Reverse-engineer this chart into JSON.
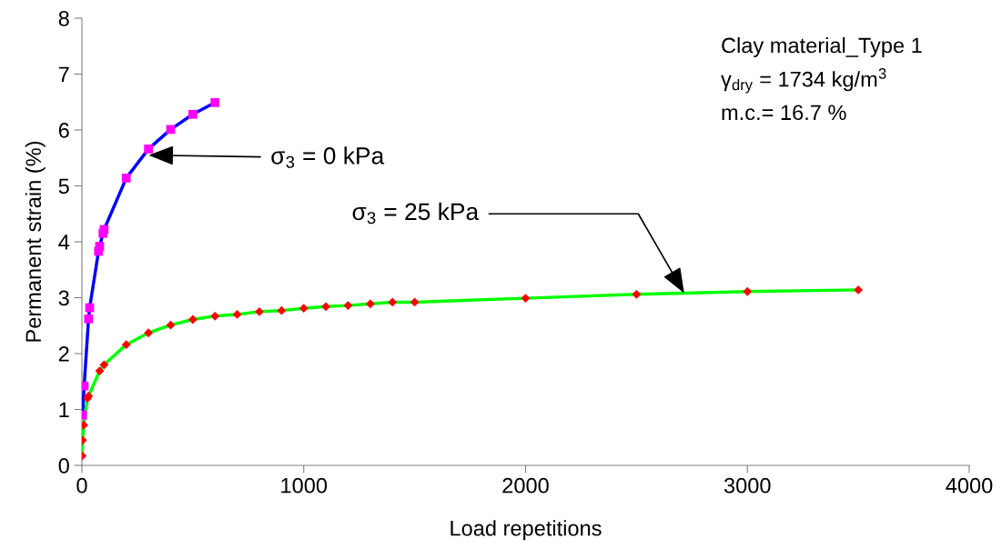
{
  "chart_data": {
    "type": "line",
    "xlabel": "Load repetitions",
    "ylabel": "Permanent strain (%)",
    "xlim": [
      0,
      4000
    ],
    "xticks": [
      0,
      1000,
      2000,
      3000,
      4000
    ],
    "ylim": [
      0,
      8
    ],
    "yticks": [
      0,
      1,
      2,
      3,
      4,
      5,
      6,
      7,
      8
    ],
    "grid": false,
    "legend": false,
    "series": [
      {
        "color": "#0000ff",
        "marker": "square",
        "colors": [
          "#ff00ff",
          "#ff00ff",
          "#ff00ff",
          "#ff00ff",
          "#ff00ff",
          "#ff00ff",
          "#ff00ff",
          "#ff00ff",
          "#ff00ff",
          "#ff00ff",
          "#ff00ff",
          "#ff00ff",
          "#ff00ff"
        ],
        "x": [
          3,
          10,
          30,
          35,
          75,
          80,
          95,
          100,
          200,
          300,
          400,
          500,
          600
        ],
        "values": [
          0.9,
          1.42,
          2.62,
          2.82,
          3.83,
          3.92,
          4.15,
          4.22,
          5.14,
          5.66,
          6.01,
          6.28,
          6.49
        ]
      },
      {
        "color": "#00ff00",
        "marker": "diamond",
        "colors": [
          "#ff0000",
          "#ff0000",
          "#ff0000",
          "#ff0000",
          "#ff0000",
          "#ff0000",
          "#ff0000",
          "#ff0000",
          "#ff0000",
          "#ff0000",
          "#ff0000",
          "#ff0000",
          "#ff0000",
          "#ff0000",
          "#ff0000",
          "#ff0000",
          "#ff0000",
          "#ff0000",
          "#ff0000",
          "#ff0000",
          "#ff0000",
          "#ff0000",
          "#ff0000",
          "#ff0000",
          "#ff0000"
        ],
        "x": [
          1,
          3,
          8,
          25,
          30,
          80,
          100,
          200,
          300,
          400,
          500,
          600,
          700,
          800,
          900,
          1000,
          1100,
          1200,
          1300,
          1400,
          1500,
          2000,
          2500,
          3000,
          3500
        ],
        "values": [
          0.17,
          0.45,
          0.72,
          1.2,
          1.24,
          1.69,
          1.8,
          2.16,
          2.37,
          2.51,
          2.61,
          2.67,
          2.7,
          2.75,
          2.77,
          2.81,
          2.84,
          2.86,
          2.89,
          2.92,
          2.92,
          2.99,
          3.06,
          3.11,
          3.14
        ]
      }
    ],
    "annotations": [
      {
        "text": "σ$_{3}$ = 0 kPa",
        "x": 300,
        "y": 5.55
      },
      {
        "text": "σ$_{3}$ = 25 kPa",
        "x": 2715,
        "y": 3.08
      },
      "Clay material_Type 1",
      "γ$_{dry}$ = 1734 kg/m$^{3}$",
      "m.c.= 16.7 %"
    ]
  }
}
